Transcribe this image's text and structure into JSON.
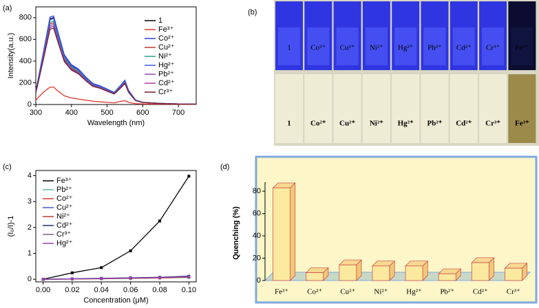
{
  "chart_data": [
    {
      "type": "line",
      "panel_label": "(a)",
      "x_label": "Wavelength (nm)",
      "y_label": "Intensity(a.u.)",
      "x": [
        300,
        320,
        340,
        350,
        360,
        380,
        400,
        420,
        440,
        460,
        480,
        500,
        520,
        540,
        550,
        560,
        580,
        600,
        650,
        700,
        750
      ],
      "xlim": [
        300,
        750
      ],
      "xticks": [
        300,
        400,
        500,
        600,
        700
      ],
      "ylim": [
        0,
        900
      ],
      "yticks": [
        0,
        200,
        400,
        600,
        800
      ],
      "series": [
        {
          "name": "1",
          "color": "#000000",
          "values": [
            120,
            450,
            790,
            800,
            680,
            450,
            360,
            320,
            250,
            190,
            170,
            140,
            110,
            180,
            220,
            130,
            40,
            20,
            10,
            5,
            3
          ]
        },
        {
          "name": "Fe³⁺",
          "color": "#e0352a",
          "values": [
            40,
            110,
            160,
            160,
            130,
            80,
            60,
            50,
            40,
            30,
            25,
            20,
            15,
            30,
            35,
            20,
            8,
            5,
            3,
            2,
            1
          ]
        },
        {
          "name": "Co²⁺",
          "color": "#2b3fd8",
          "values": [
            122,
            459,
            806,
            816,
            694,
            459,
            367,
            326,
            255,
            194,
            173,
            143,
            112,
            184,
            224,
            133,
            41,
            20,
            10,
            5,
            3
          ]
        },
        {
          "name": "Cu²⁺",
          "color": "#c0392b",
          "values": [
            113,
            423,
            743,
            752,
            639,
            423,
            338,
            301,
            235,
            179,
            160,
            132,
            103,
            169,
            207,
            122,
            38,
            19,
            9,
            5,
            3
          ]
        },
        {
          "name": "Ni²⁺",
          "color": "#2a9d8f",
          "values": [
            115,
            432,
            758,
            768,
            653,
            432,
            346,
            307,
            240,
            182,
            163,
            134,
            106,
            173,
            211,
            125,
            38,
            19,
            10,
            5,
            3
          ]
        },
        {
          "name": "Hg²⁺",
          "color": "#3a5ad9",
          "values": [
            119,
            446,
            782,
            792,
            673,
            446,
            356,
            317,
            248,
            188,
            168,
            139,
            109,
            178,
            218,
            129,
            40,
            20,
            10,
            5,
            3
          ]
        },
        {
          "name": "Pb²⁺",
          "color": "#8e44ad",
          "values": [
            110,
            414,
            727,
            736,
            626,
            414,
            331,
            294,
            230,
            175,
            156,
            129,
            101,
            166,
            202,
            120,
            37,
            18,
            9,
            5,
            3
          ]
        },
        {
          "name": "Cd²⁺",
          "color": "#b03a9e",
          "values": [
            108,
            405,
            711,
            720,
            612,
            405,
            324,
            288,
            225,
            171,
            153,
            126,
            99,
            162,
            198,
            117,
            36,
            18,
            9,
            5,
            3
          ]
        },
        {
          "name": "Cr³⁺",
          "color": "#6b1e2e",
          "values": [
            106,
            396,
            695,
            704,
            598,
            396,
            317,
            282,
            220,
            167,
            150,
            123,
            97,
            158,
            194,
            114,
            35,
            18,
            9,
            4,
            3
          ]
        }
      ]
    },
    {
      "type": "line",
      "panel_label": "(c)",
      "x_label": "Concentration (μM)",
      "y_label": "(I₀/I)-1",
      "markers": true,
      "x": [
        0,
        0.02,
        0.04,
        0.06,
        0.08,
        0.1
      ],
      "xlim": [
        -0.005,
        0.105
      ],
      "xticks": [
        {
          "value": 0,
          "label": "0.00"
        },
        {
          "value": 0.02,
          "label": "0.02"
        },
        {
          "value": 0.04,
          "label": "0.04"
        },
        {
          "value": 0.06,
          "label": "0.06"
        },
        {
          "value": 0.08,
          "label": "0.08"
        },
        {
          "value": 0.1,
          "label": "0.10"
        }
      ],
      "ylim": [
        -0.1,
        4.2
      ],
      "yticks": [
        0,
        1,
        2,
        3,
        4
      ],
      "series": [
        {
          "name": "Fe³⁺",
          "color": "#000000",
          "values": [
            0,
            0.25,
            0.45,
            1.1,
            2.25,
            3.98
          ]
        },
        {
          "name": "Pb²⁺",
          "color": "#5fb8a8",
          "values": [
            0,
            0.01,
            0.02,
            0.03,
            0.05,
            0.07
          ]
        },
        {
          "name": "Co²⁺",
          "color": "#e0352a",
          "values": [
            0,
            0.01,
            0.02,
            0.04,
            0.05,
            0.08
          ]
        },
        {
          "name": "Cu²⁺",
          "color": "#3a5ad9",
          "values": [
            0,
            0.02,
            0.03,
            0.05,
            0.07,
            0.1
          ]
        },
        {
          "name": "Ni²⁺",
          "color": "#c0392b",
          "values": [
            0,
            0.01,
            0.03,
            0.04,
            0.06,
            0.09
          ]
        },
        {
          "name": "Cd²⁺",
          "color": "#1f2a6b",
          "values": [
            0,
            0.02,
            0.04,
            0.06,
            0.08,
            0.12
          ]
        },
        {
          "name": "Cr³⁺",
          "color": "#7a5a8a",
          "values": [
            0,
            0.01,
            0.03,
            0.05,
            0.07,
            0.09
          ]
        },
        {
          "name": "Hg²⁺",
          "color": "#8e44ad",
          "values": [
            0,
            0.02,
            0.03,
            0.05,
            0.07,
            0.1
          ]
        }
      ]
    },
    {
      "type": "bar",
      "panel_label": "(d)",
      "y_label": "Quenching (%)",
      "categories": [
        "Fe³⁺",
        "Co²⁺",
        "Cu²⁺",
        "Ni²⁺",
        "Hg²⁺",
        "Pb²⁺",
        "Cd²⁺",
        "Cr³⁺"
      ],
      "values": [
        83,
        7,
        14,
        13,
        13,
        6,
        16,
        11
      ],
      "color": "#fbe9a0",
      "ylim": [
        0,
        85
      ],
      "yticks": [
        0,
        20,
        40,
        60,
        80
      ]
    }
  ],
  "photo": {
    "panel_label": "(b)",
    "top_labels": [
      "1",
      "Co²⁺",
      "Cu²⁺",
      "Ni²⁺",
      "Hg²⁺",
      "Pb²⁺",
      "Cd²⁺",
      "Cr³⁺",
      "Fe³⁺"
    ],
    "bottom_labels": [
      "1",
      "Co²⁺",
      "Cu²⁺",
      "Ni²⁺",
      "Hg²⁺",
      "Pb²⁺",
      "Cd²⁺",
      "Cr³⁺",
      "Fe³⁺"
    ]
  }
}
